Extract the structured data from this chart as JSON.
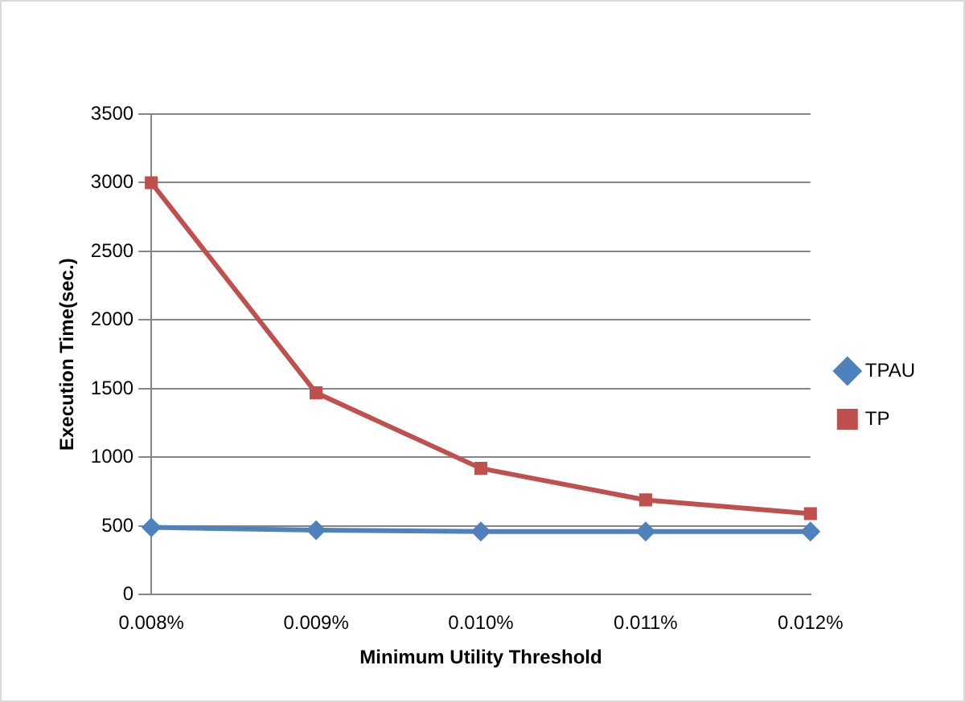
{
  "chart_data": {
    "type": "line",
    "xlabel": "Minimum Utility Threshold",
    "ylabel": "Execution Time(sec.)",
    "categories": [
      "0.008%",
      "0.009%",
      "0.010%",
      "0.011%",
      "0.012%"
    ],
    "series": [
      {
        "name": "TPAU",
        "color": "#4f81bd",
        "marker": "diamond",
        "values": [
          490,
          470,
          460,
          460,
          460
        ]
      },
      {
        "name": "TP",
        "color": "#c0504d",
        "marker": "square",
        "values": [
          3000,
          1470,
          920,
          690,
          590
        ]
      }
    ],
    "ylim": [
      0,
      3500
    ],
    "yticks": [
      0,
      500,
      1000,
      1500,
      2000,
      2500,
      3000,
      3500
    ],
    "grid": "y",
    "legend": "right",
    "line_style": "solid"
  }
}
